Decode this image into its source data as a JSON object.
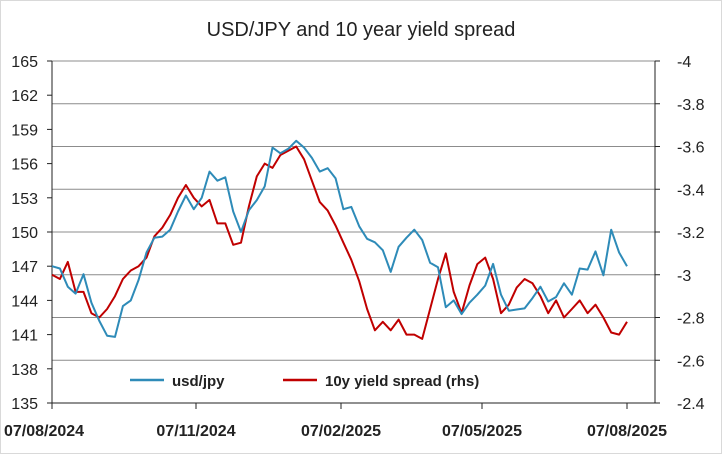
{
  "chart_data": {
    "type": "line",
    "title": "USD/JPY and 10 year yield spread",
    "xlabel": "",
    "ylabel": "",
    "x_ticks": [
      "07/08/2024",
      "07/11/2024",
      "07/02/2025",
      "07/05/2025",
      "07/08/2025"
    ],
    "y_left": {
      "ticks": [
        "165",
        "162",
        "159",
        "156",
        "153",
        "150",
        "147",
        "144",
        "141",
        "138",
        "135"
      ],
      "range": [
        135,
        165
      ]
    },
    "y_right": {
      "ticks": [
        "-4",
        "-3.8",
        "-3.6",
        "-3.4",
        "-3.2",
        "-3",
        "-2.8",
        "-2.6",
        "-2.4"
      ],
      "range": [
        -4.0,
        -2.4
      ],
      "inverted": true
    },
    "grid": true,
    "legend_position": "bottom-inside",
    "series": [
      {
        "name": "usd/jpy",
        "axis": "left",
        "color": "#2e8bb8",
        "x": [
          "2024-08-07",
          "2024-08-12",
          "2024-08-17",
          "2024-08-22",
          "2024-08-27",
          "2024-09-01",
          "2024-09-06",
          "2024-09-11",
          "2024-09-16",
          "2024-09-21",
          "2024-09-26",
          "2024-10-01",
          "2024-10-06",
          "2024-10-11",
          "2024-10-16",
          "2024-10-21",
          "2024-10-26",
          "2024-10-31",
          "2024-11-05",
          "2024-11-10",
          "2024-11-15",
          "2024-11-20",
          "2024-11-25",
          "2024-11-30",
          "2024-12-05",
          "2024-12-10",
          "2024-12-15",
          "2024-12-20",
          "2024-12-25",
          "2024-12-30",
          "2025-01-04",
          "2025-01-09",
          "2025-01-14",
          "2025-01-19",
          "2025-01-24",
          "2025-01-29",
          "2025-02-03",
          "2025-02-08",
          "2025-02-13",
          "2025-02-18",
          "2025-02-23",
          "2025-02-28",
          "2025-03-05",
          "2025-03-10",
          "2025-03-15",
          "2025-03-20",
          "2025-03-25",
          "2025-03-30",
          "2025-04-04",
          "2025-04-09",
          "2025-04-14",
          "2025-04-19",
          "2025-04-24",
          "2025-04-29",
          "2025-05-04",
          "2025-05-09",
          "2025-05-14",
          "2025-05-19",
          "2025-05-24",
          "2025-05-29",
          "2025-06-03",
          "2025-06-08",
          "2025-06-13",
          "2025-06-18",
          "2025-06-23",
          "2025-06-28",
          "2025-07-03",
          "2025-07-08",
          "2025-07-13",
          "2025-07-18",
          "2025-07-23",
          "2025-07-28",
          "2025-08-02",
          "2025-08-07"
        ],
        "values": [
          147.0,
          146.8,
          145.2,
          144.6,
          146.3,
          143.8,
          142.2,
          140.9,
          140.8,
          143.5,
          144.0,
          145.8,
          148.2,
          149.5,
          149.6,
          150.2,
          151.8,
          153.2,
          152.0,
          153.0,
          155.3,
          154.5,
          154.8,
          151.8,
          150.0,
          151.9,
          152.8,
          154.0,
          157.4,
          156.9,
          157.3,
          158.0,
          157.4,
          156.5,
          155.3,
          155.6,
          154.7,
          152.0,
          152.2,
          150.5,
          149.4,
          149.1,
          148.4,
          146.5,
          148.7,
          149.5,
          150.2,
          149.3,
          147.3,
          146.9,
          143.4,
          144.0,
          142.8,
          143.8,
          144.5,
          145.3,
          147.2,
          144.5,
          143.1,
          143.2,
          143.3,
          144.2,
          145.2,
          143.9,
          144.3,
          145.5,
          144.5,
          146.8,
          146.7,
          148.3,
          146.2,
          150.2,
          148.2,
          147.0
        ]
      },
      {
        "name": "10y yield spread (rhs)",
        "axis": "right",
        "color": "#c00000",
        "x": [
          "2024-08-07",
          "2024-08-12",
          "2024-08-17",
          "2024-08-22",
          "2024-08-27",
          "2024-09-01",
          "2024-09-06",
          "2024-09-11",
          "2024-09-16",
          "2024-09-21",
          "2024-09-26",
          "2024-10-01",
          "2024-10-06",
          "2024-10-11",
          "2024-10-16",
          "2024-10-21",
          "2024-10-26",
          "2024-10-31",
          "2024-11-05",
          "2024-11-10",
          "2024-11-15",
          "2024-11-20",
          "2024-11-25",
          "2024-11-30",
          "2024-12-05",
          "2024-12-10",
          "2024-12-15",
          "2024-12-20",
          "2024-12-25",
          "2024-12-30",
          "2025-01-04",
          "2025-01-09",
          "2025-01-14",
          "2025-01-19",
          "2025-01-24",
          "2025-01-29",
          "2025-02-03",
          "2025-02-08",
          "2025-02-13",
          "2025-02-18",
          "2025-02-23",
          "2025-02-28",
          "2025-03-05",
          "2025-03-10",
          "2025-03-15",
          "2025-03-20",
          "2025-03-25",
          "2025-03-30",
          "2025-04-04",
          "2025-04-09",
          "2025-04-14",
          "2025-04-19",
          "2025-04-24",
          "2025-04-29",
          "2025-05-04",
          "2025-05-09",
          "2025-05-14",
          "2025-05-19",
          "2025-05-24",
          "2025-05-29",
          "2025-06-03",
          "2025-06-08",
          "2025-06-13",
          "2025-06-18",
          "2025-06-23",
          "2025-06-28",
          "2025-07-03",
          "2025-07-08",
          "2025-07-13",
          "2025-07-18",
          "2025-07-23",
          "2025-07-28",
          "2025-08-02",
          "2025-08-07"
        ],
        "values": [
          -3.0,
          -2.98,
          -3.06,
          -2.92,
          -2.92,
          -2.82,
          -2.8,
          -2.84,
          -2.9,
          -2.98,
          -3.02,
          -3.04,
          -3.08,
          -3.18,
          -3.22,
          -3.28,
          -3.36,
          -3.42,
          -3.36,
          -3.32,
          -3.35,
          -3.24,
          -3.24,
          -3.14,
          -3.15,
          -3.32,
          -3.46,
          -3.52,
          -3.5,
          -3.56,
          -3.58,
          -3.6,
          -3.54,
          -3.44,
          -3.34,
          -3.3,
          -3.23,
          -3.15,
          -3.07,
          -2.97,
          -2.84,
          -2.74,
          -2.78,
          -2.74,
          -2.79,
          -2.72,
          -2.72,
          -2.7,
          -2.84,
          -2.98,
          -3.1,
          -2.92,
          -2.82,
          -2.95,
          -3.05,
          -3.08,
          -2.98,
          -2.82,
          -2.86,
          -2.94,
          -2.98,
          -2.96,
          -2.9,
          -2.82,
          -2.88,
          -2.8,
          -2.84,
          -2.88,
          -2.82,
          -2.86,
          -2.8,
          -2.73,
          -2.72,
          -2.78
        ]
      }
    ]
  }
}
